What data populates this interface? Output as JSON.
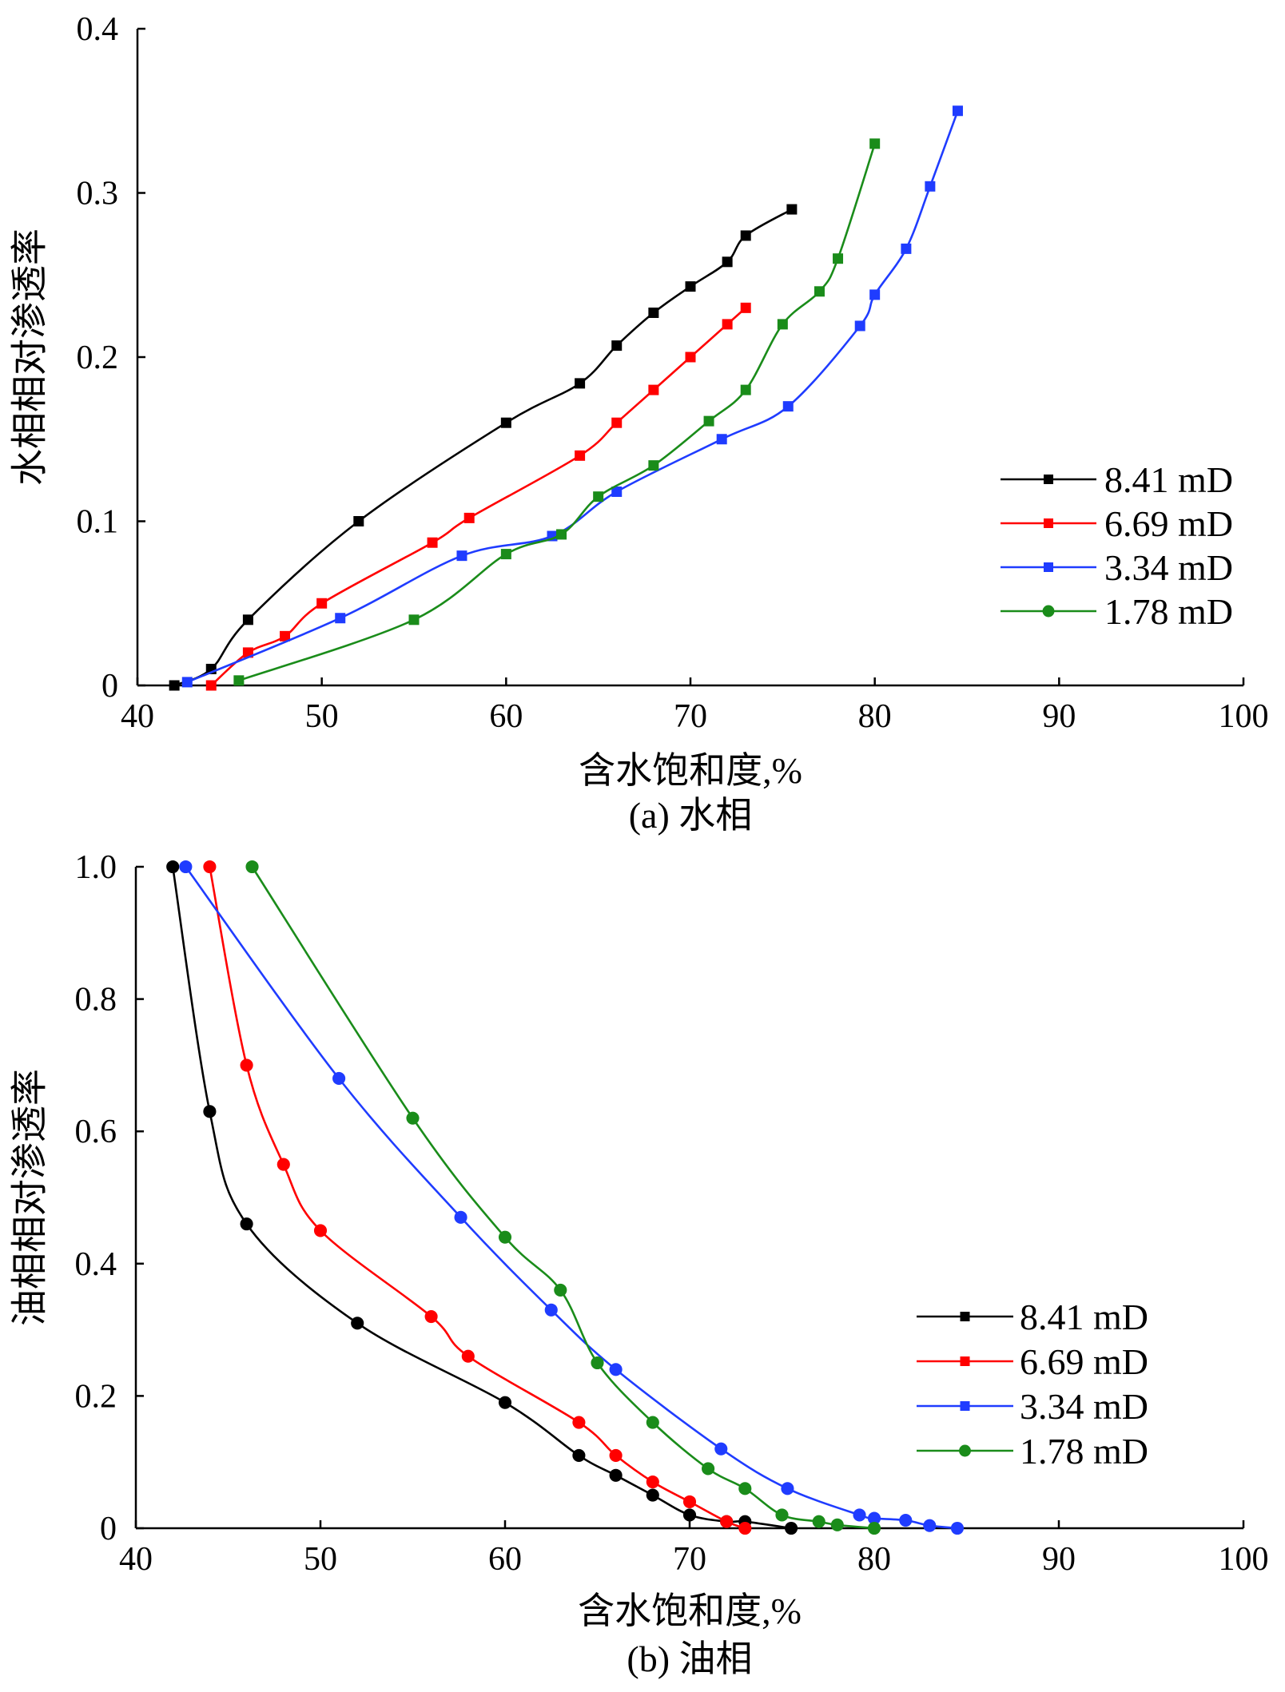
{
  "chart_data": [
    {
      "type": "line",
      "caption": "(a) 水相",
      "xlabel": "含水饱和度,%",
      "ylabel": "水相相对渗透率",
      "xlim": [
        40,
        100
      ],
      "ylim": [
        0,
        0.4
      ],
      "xticks": [
        40,
        50,
        60,
        70,
        80,
        90,
        100
      ],
      "xtick_labels": [
        "40",
        "50",
        "60",
        "70",
        "80",
        "90",
        "100"
      ],
      "yticks": [
        0,
        0.1,
        0.2,
        0.3,
        0.4
      ],
      "ytick_labels": [
        "0",
        "0.1",
        "0.2",
        "0.3",
        "0.4"
      ],
      "legend_position": "right",
      "legend_markers": [
        "square",
        "square",
        "square",
        "circle"
      ],
      "series": [
        {
          "name": "8.41 mD",
          "color": "#000000",
          "marker": "square",
          "x": [
            42,
            44,
            46,
            52,
            60,
            64,
            66,
            68,
            70,
            72,
            73,
            75.5
          ],
          "y": [
            0,
            0.01,
            0.04,
            0.1,
            0.16,
            0.184,
            0.207,
            0.227,
            0.243,
            0.258,
            0.274,
            0.29
          ]
        },
        {
          "name": "6.69 mD",
          "color": "#ff0000",
          "marker": "square",
          "x": [
            44,
            46,
            48,
            50,
            56,
            58,
            64,
            66,
            68,
            70,
            72,
            73
          ],
          "y": [
            0,
            0.02,
            0.03,
            0.05,
            0.087,
            0.102,
            0.14,
            0.16,
            0.18,
            0.2,
            0.22,
            0.23
          ]
        },
        {
          "name": "3.34 mD",
          "color": "#1f3cff",
          "marker": "square",
          "x": [
            42.7,
            51,
            57.6,
            62.5,
            66,
            71.7,
            75.3,
            79.2,
            80,
            81.7,
            83,
            84.5
          ],
          "y": [
            0.002,
            0.041,
            0.079,
            0.091,
            0.118,
            0.15,
            0.17,
            0.219,
            0.238,
            0.266,
            0.304,
            0.35
          ]
        },
        {
          "name": "1.78 mD",
          "color": "#1a8c1a",
          "marker": "square",
          "x": [
            45.5,
            55,
            60,
            63,
            65,
            68,
            71,
            73,
            75,
            77,
            78,
            80
          ],
          "y": [
            0.003,
            0.04,
            0.08,
            0.092,
            0.115,
            0.134,
            0.161,
            0.18,
            0.22,
            0.24,
            0.26,
            0.33
          ]
        }
      ]
    },
    {
      "type": "line",
      "caption": "(b) 油相",
      "xlabel": "含水饱和度,%",
      "ylabel": "油相相对渗透率",
      "xlim": [
        40,
        100
      ],
      "ylim": [
        0,
        1.0
      ],
      "xticks": [
        40,
        50,
        60,
        70,
        80,
        90,
        100
      ],
      "xtick_labels": [
        "40",
        "50",
        "60",
        "70",
        "80",
        "90",
        "100"
      ],
      "yticks": [
        0,
        0.2,
        0.4,
        0.6,
        0.8,
        1.0
      ],
      "ytick_labels": [
        "0",
        "0.2",
        "0.4",
        "0.6",
        "0.8",
        "1.0"
      ],
      "legend_position": "right",
      "legend_markers": [
        "square",
        "square",
        "square",
        "circle"
      ],
      "series": [
        {
          "name": "8.41 mD",
          "color": "#000000",
          "marker": "circle",
          "x": [
            42,
            44,
            46,
            52,
            60,
            64,
            66,
            68,
            70,
            72,
            73,
            75.5
          ],
          "y": [
            1.0,
            0.63,
            0.46,
            0.31,
            0.19,
            0.11,
            0.08,
            0.05,
            0.02,
            0.01,
            0.01,
            0.0
          ]
        },
        {
          "name": "6.69 mD",
          "color": "#ff0000",
          "marker": "circle",
          "x": [
            44,
            46,
            48,
            50,
            56,
            58,
            64,
            66,
            68,
            70,
            72,
            73
          ],
          "y": [
            1.0,
            0.7,
            0.55,
            0.45,
            0.32,
            0.26,
            0.16,
            0.11,
            0.07,
            0.04,
            0.01,
            0.0
          ]
        },
        {
          "name": "3.34 mD",
          "color": "#1f3cff",
          "marker": "circle",
          "x": [
            42.7,
            51,
            57.6,
            62.5,
            66,
            71.7,
            75.3,
            79.2,
            80,
            81.7,
            83,
            84.5
          ],
          "y": [
            1.0,
            0.68,
            0.47,
            0.33,
            0.24,
            0.12,
            0.06,
            0.02,
            0.015,
            0.012,
            0.004,
            0.0
          ]
        },
        {
          "name": "1.78 mD",
          "color": "#1a8c1a",
          "marker": "circle",
          "x": [
            46.3,
            55,
            60,
            63,
            65,
            68,
            71,
            73,
            75,
            77,
            78,
            80
          ],
          "y": [
            1.0,
            0.62,
            0.44,
            0.36,
            0.25,
            0.16,
            0.09,
            0.06,
            0.02,
            0.01,
            0.005,
            0.0
          ]
        }
      ]
    }
  ]
}
